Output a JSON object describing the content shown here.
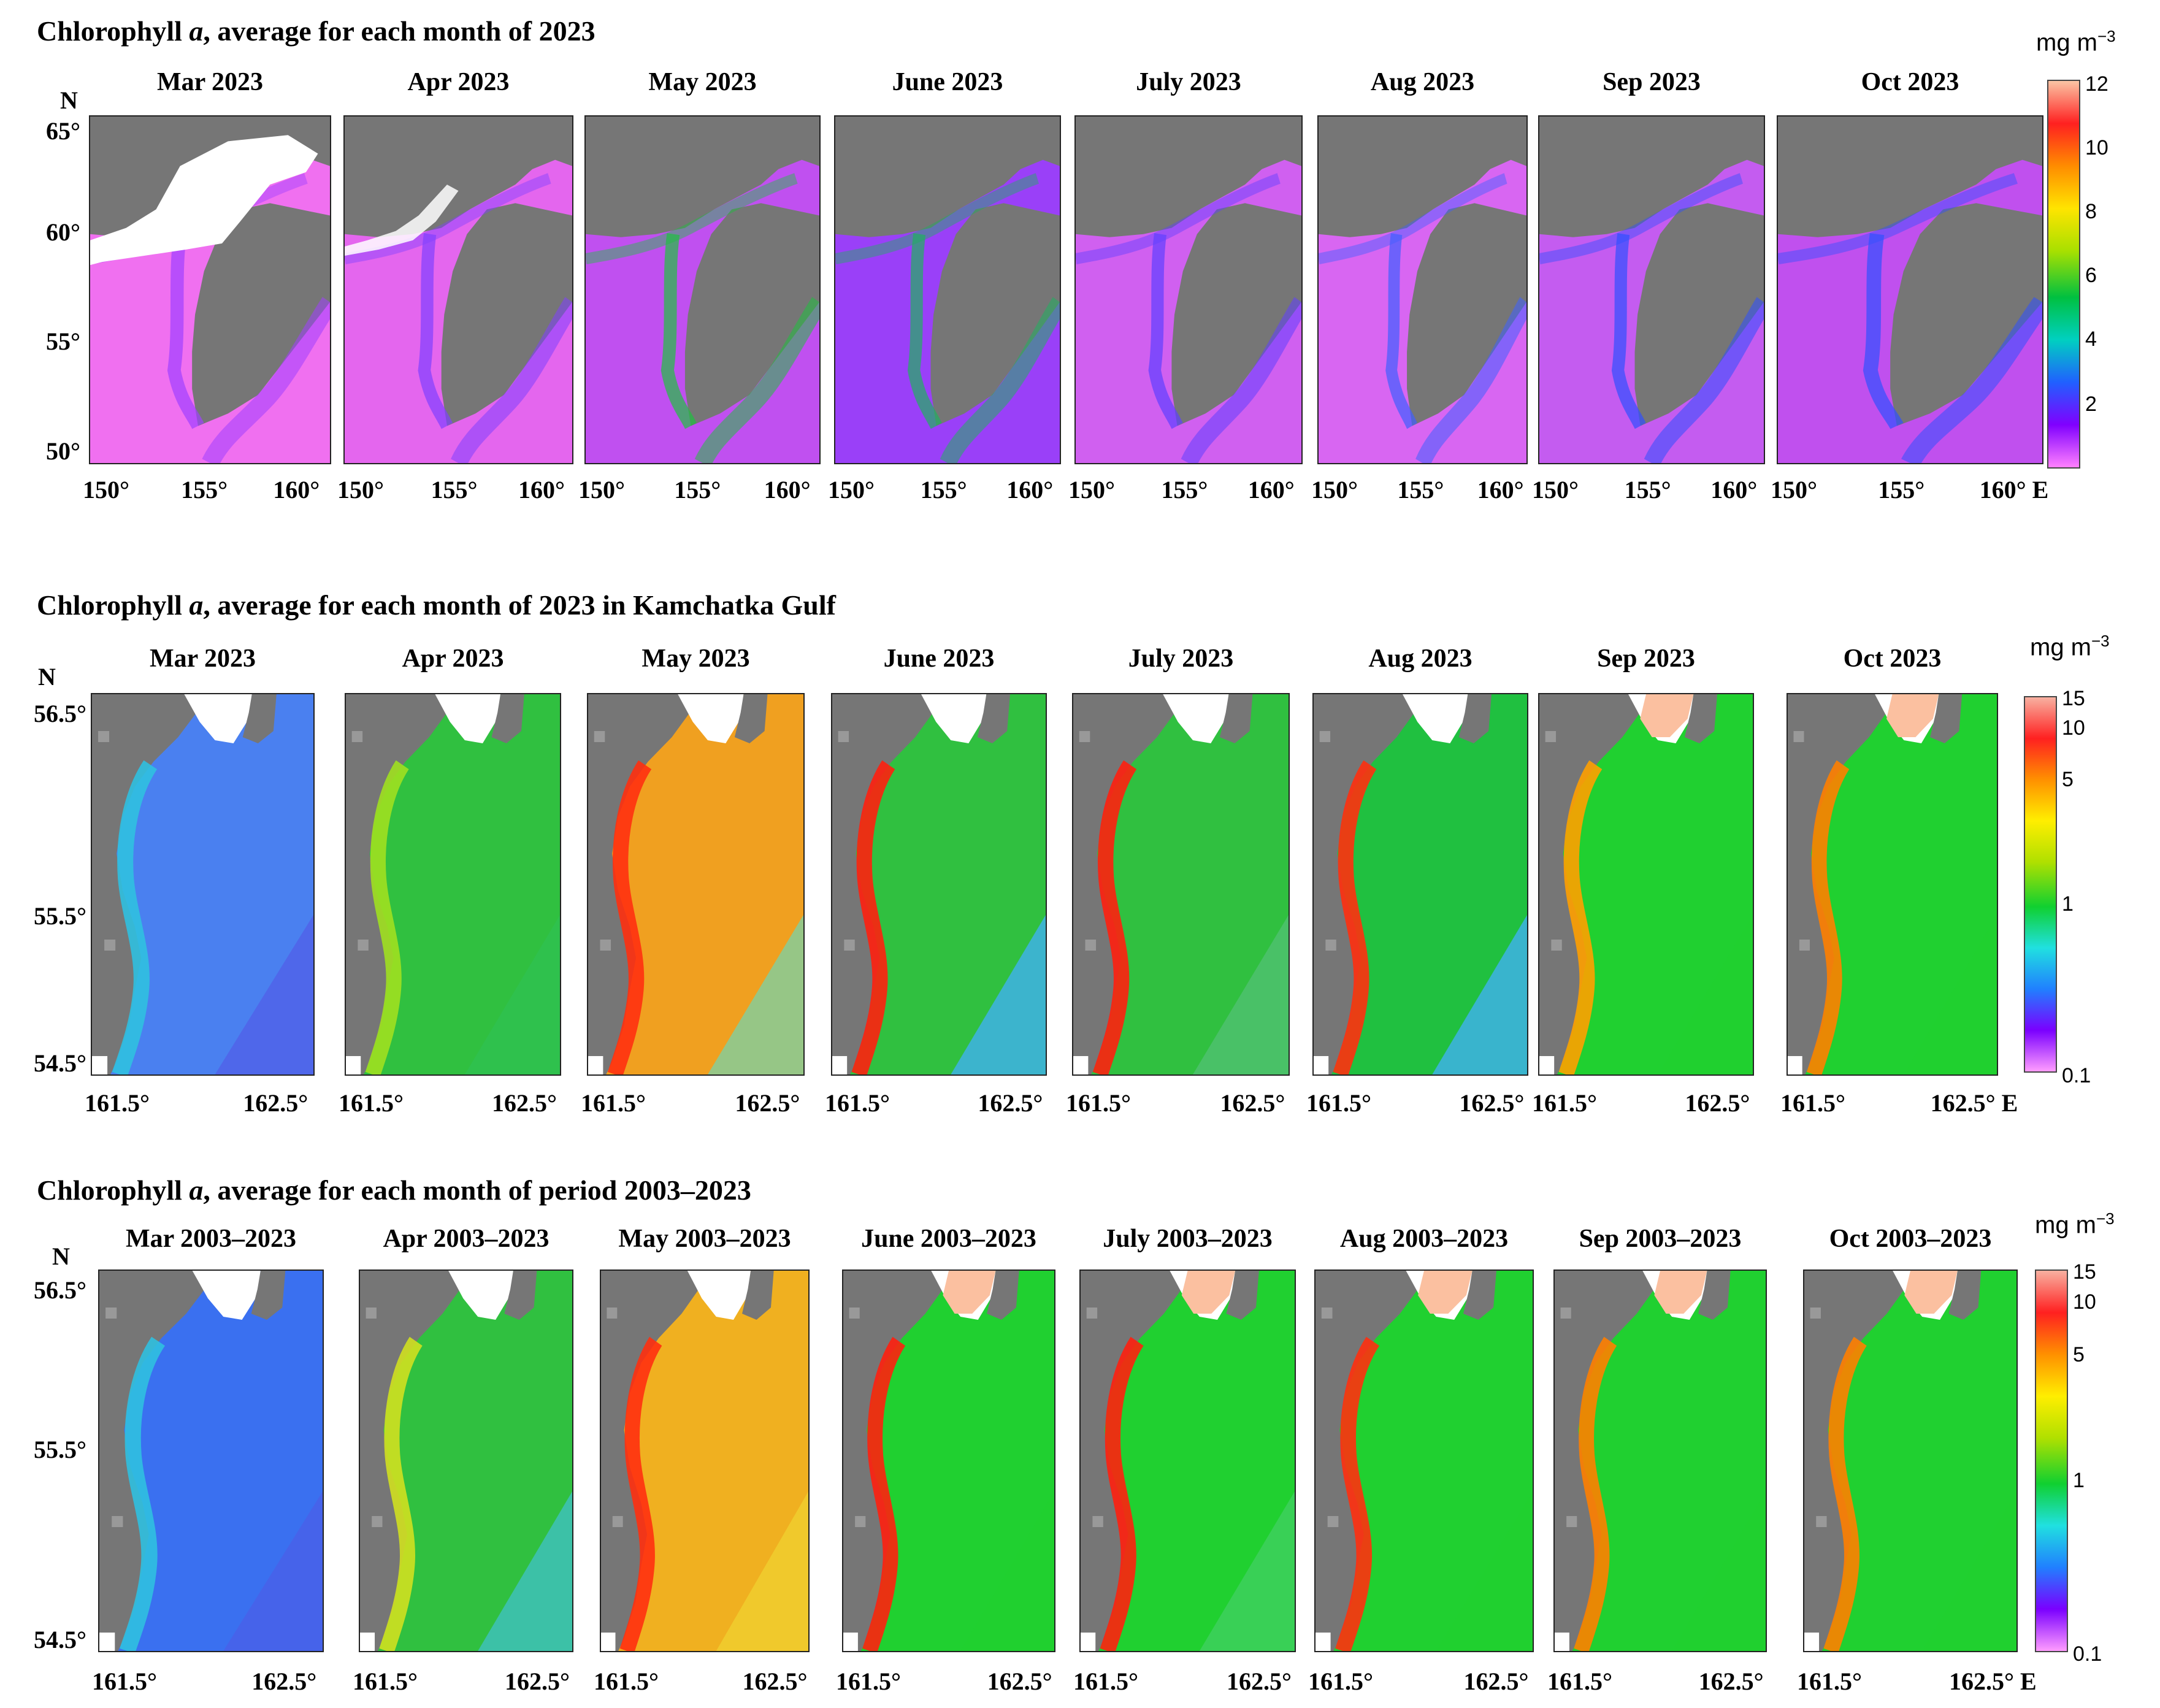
{
  "colors": {
    "land": "#767676",
    "ice": "#ffffff",
    "cb_top": [
      "#fbc4a4",
      "#ff2020",
      "#ff8c00",
      "#ffe400",
      "#a8e000",
      "#00c040",
      "#00d0c0",
      "#2060ff",
      "#8000ff",
      "#ff80ff"
    ],
    "cb_bot": [
      "#f8b0a0",
      "#ff2020",
      "#ff9000",
      "#ffee00",
      "#b0e000",
      "#10d030",
      "#20e0e0",
      "#2080ff",
      "#7a00ff",
      "#ff9cff"
    ]
  },
  "rows": [
    {
      "title_pre": "Chlorophyll ",
      "title_italic": "a",
      "title_post": ", average for each month of 2023",
      "n_label": "N",
      "yticks": [
        "65°",
        "60°",
        "55°",
        "50°"
      ],
      "xticks": [
        "150°",
        "155°",
        "160°"
      ],
      "last_xtick_suffix": " E",
      "map_type": "okhotsk",
      "panels": [
        {
          "label": "Mar 2023",
          "sea": "#f070f0",
          "acc": "#a040ff",
          "ice": 1.0
        },
        {
          "label": "Apr 2023",
          "sea": "#e466ee",
          "acc": "#8040ff",
          "ice": 0.5
        },
        {
          "label": "May 2023",
          "sea": "#c050f0",
          "acc": "#20c040",
          "ice": 0
        },
        {
          "label": "June 2023",
          "sea": "#9a40f8",
          "acc": "#20b060",
          "ice": 0
        },
        {
          "label": "July 2023",
          "sea": "#d060f0",
          "acc": "#6040ff",
          "ice": 0
        },
        {
          "label": "Aug 2023",
          "sea": "#d866f2",
          "acc": "#4060ff",
          "ice": 0
        },
        {
          "label": "Sep 2023",
          "sea": "#c45cf0",
          "acc": "#3050ff",
          "ice": 0
        },
        {
          "label": "Oct 2023",
          "sea": "#c050ee",
          "acc": "#3050ff",
          "ice": 0
        }
      ],
      "cbar": {
        "unit": "mg m",
        "unit_sup": "−3",
        "ticks": [
          "12",
          "10",
          "8",
          "6",
          "4",
          "2"
        ]
      }
    },
    {
      "title_pre": "Chlorophyll ",
      "title_italic": "a",
      "title_post": ", average for each month of 2023 in Kamchatka Gulf",
      "n_label": "N",
      "yticks": [
        "56.5°",
        "55.5°",
        "54.5°"
      ],
      "xticks": [
        "161.5°",
        "162.5°"
      ],
      "last_xtick_suffix": " E",
      "map_type": "kamchatka",
      "panels": [
        {
          "label": "Mar 2023",
          "sea": "#4a80f0",
          "coast": "#30c0e0",
          "far": "#5060e8",
          "bloom": false
        },
        {
          "label": "Apr 2023",
          "sea": "#30c040",
          "coast": "#a0e020",
          "far": "#30c050",
          "bloom": false
        },
        {
          "label": "May 2023",
          "sea": "#f0a020",
          "coast": "#ff3010",
          "far": "#80d0a0",
          "bloom": false
        },
        {
          "label": "June 2023",
          "sea": "#30c040",
          "coast": "#ff2010",
          "far": "#40b0f0",
          "bloom": false
        },
        {
          "label": "July 2023",
          "sea": "#30c040",
          "coast": "#ff2010",
          "far": "#50c070",
          "bloom": false
        },
        {
          "label": "Aug 2023",
          "sea": "#20c040",
          "coast": "#ff3010",
          "far": "#40b0f0",
          "bloom": false
        },
        {
          "label": "Sep 2023",
          "sea": "#20d030",
          "coast": "#ffa000",
          "far": "#20d030",
          "bloom": true
        },
        {
          "label": "Oct 2023",
          "sea": "#20d030",
          "coast": "#ff8000",
          "far": "#20d030",
          "bloom": true
        }
      ],
      "cbar": {
        "unit": "mg m",
        "unit_sup": "−3",
        "ticks": [
          "15",
          "10",
          "5",
          "1",
          "0.1"
        ]
      }
    },
    {
      "title_pre": "Chlorophyll ",
      "title_italic": "a",
      "title_post": ", average for each month of  period 2003–2023",
      "n_label": "N",
      "yticks": [
        "56.5°",
        "55.5°",
        "54.5°"
      ],
      "xticks": [
        "161.5°",
        "162.5°"
      ],
      "last_xtick_suffix": " E",
      "map_type": "kamchatka",
      "panels": [
        {
          "label": "Mar 2003–2023",
          "sea": "#3a70f0",
          "coast": "#30c0e0",
          "far": "#4a60e8",
          "bloom": false
        },
        {
          "label": "Apr 2003–2023",
          "sea": "#30c040",
          "coast": "#d0e020",
          "far": "#40c0c0",
          "bloom": false
        },
        {
          "label": "May 2003–2023",
          "sea": "#f0b020",
          "coast": "#ff3010",
          "far": "#f0d030",
          "bloom": false
        },
        {
          "label": "June 2003–2023",
          "sea": "#20d030",
          "coast": "#ff2010",
          "far": "#20d030",
          "bloom": true
        },
        {
          "label": "July 2003–2023",
          "sea": "#20d030",
          "coast": "#ff2010",
          "far": "#40d060",
          "bloom": true
        },
        {
          "label": "Aug 2003–2023",
          "sea": "#20d030",
          "coast": "#ff3010",
          "far": "#20d030",
          "bloom": true
        },
        {
          "label": "Sep 2003–2023",
          "sea": "#20d030",
          "coast": "#ff8000",
          "far": "#20d030",
          "bloom": true
        },
        {
          "label": "Oct 2003–2023",
          "sea": "#20d030",
          "coast": "#ff8000",
          "far": "#20d030",
          "bloom": true
        }
      ],
      "cbar": {
        "unit": "mg m",
        "unit_sup": "−3",
        "ticks": [
          "15",
          "10",
          "5",
          "1",
          "0.1"
        ]
      }
    }
  ]
}
